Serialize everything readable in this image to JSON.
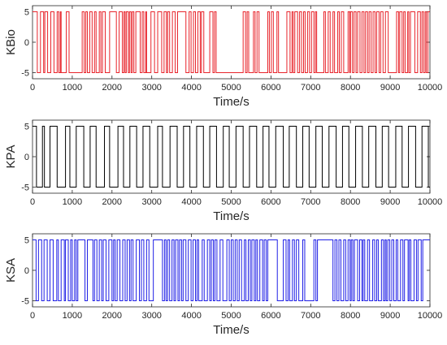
{
  "chart_data": [
    {
      "type": "line",
      "ylabel": "KBio",
      "xlabel": "Time/s",
      "color": "#e8242b",
      "xlim": [
        0,
        10000
      ],
      "ylim": [
        -6,
        6
      ],
      "xticks": [
        0,
        1000,
        2000,
        3000,
        4000,
        5000,
        6000,
        7000,
        8000,
        9000,
        10000
      ],
      "yticks": [
        -5,
        0,
        5
      ],
      "series": [
        {
          "values_levels": [
            -5,
            5
          ],
          "transitions": [
            0,
            120,
            200,
            280,
            310,
            380,
            460,
            540,
            620,
            660,
            700,
            720,
            850,
            920,
            1250,
            1300,
            1340,
            1380,
            1440,
            1500,
            1560,
            1600,
            1680,
            1720,
            1760,
            1830,
            1940,
            2110,
            2180,
            2260,
            2300,
            2330,
            2360,
            2410,
            2440,
            2480,
            2510,
            2550,
            2600,
            2710,
            2760,
            2800,
            2850,
            2870,
            2980,
            3070,
            3150,
            3250,
            3310,
            3370,
            3400,
            3450,
            3520,
            3590,
            3650,
            3860,
            3940,
            3990,
            4050,
            4100,
            4160,
            4220,
            4250,
            4310,
            4460,
            4540,
            4580,
            4620,
            5300,
            5360,
            5400,
            5440,
            5560,
            5600,
            5650,
            5700,
            5920,
            5960,
            6010,
            6060,
            6150,
            6190,
            6400,
            6480,
            6530,
            6560,
            6600,
            6670,
            6720,
            6770,
            6820,
            6860,
            6920,
            6970,
            7020,
            7080,
            7120,
            7150,
            7330,
            7370,
            7440,
            7490,
            7560,
            7600,
            7680,
            7720,
            7770,
            7830,
            7940,
            7980,
            8000,
            8050,
            8090,
            8140,
            8180,
            8240,
            8290,
            8340,
            8380,
            8430,
            8470,
            8520,
            8570,
            8620,
            8660,
            8720,
            8760,
            8820,
            8880,
            8950,
            9160,
            9210,
            9240,
            9300,
            9340,
            9380,
            9440,
            9470,
            9510,
            9620,
            9690,
            9760,
            9800,
            9840,
            9880,
            9910,
            9950
          ],
          "start_level": 5
        }
      ]
    },
    {
      "type": "line",
      "ylabel": "KPA",
      "xlabel": "Time/s",
      "color": "#000000",
      "xlim": [
        0,
        10000
      ],
      "ylim": [
        -6,
        6
      ],
      "xticks": [
        0,
        1000,
        2000,
        3000,
        4000,
        5000,
        6000,
        7000,
        8000,
        9000,
        10000
      ],
      "yticks": [
        -5,
        0,
        5
      ],
      "series": [
        {
          "values_levels": [
            -5,
            5
          ],
          "transitions": [
            0,
            100,
            250,
            300,
            440,
            620,
            830,
            940,
            1100,
            1290,
            1450,
            1600,
            1810,
            1940,
            2150,
            2290,
            2450,
            2620,
            2780,
            2950,
            3150,
            3270,
            3460,
            3640,
            3800,
            3960,
            4130,
            4300,
            4460,
            4630,
            4800,
            4950,
            5120,
            5300,
            5460,
            5640,
            5800,
            5950,
            6120,
            6310,
            6460,
            6640,
            6800,
            6960,
            7130,
            7290,
            7460,
            7640,
            7800,
            7960,
            8130,
            8300,
            8460,
            8640,
            8800,
            8960,
            9140,
            9300,
            9460,
            9640,
            9800,
            9960
          ],
          "start_level": 5
        }
      ]
    },
    {
      "type": "line",
      "ylabel": "KSA",
      "xlabel": "Time/s",
      "color": "#1f1fe6",
      "xlim": [
        0,
        10000
      ],
      "ylim": [
        -6,
        6
      ],
      "xticks": [
        0,
        1000,
        2000,
        3000,
        4000,
        5000,
        6000,
        7000,
        8000,
        9000,
        10000
      ],
      "yticks": [
        -5,
        0,
        5
      ],
      "series": [
        {
          "values_levels": [
            -5,
            5
          ],
          "transitions": [
            0,
            90,
            150,
            230,
            290,
            370,
            440,
            520,
            610,
            650,
            720,
            800,
            830,
            900,
            960,
            1000,
            1060,
            1100,
            1140,
            1320,
            1380,
            1520,
            1560,
            1620,
            1680,
            1740,
            1780,
            1850,
            1920,
            2000,
            2040,
            2080,
            2130,
            2200,
            2270,
            2330,
            2380,
            2440,
            2480,
            2530,
            2610,
            2690,
            2740,
            2800,
            2870,
            2930,
            3040,
            3270,
            3320,
            3360,
            3400,
            3450,
            3510,
            3560,
            3600,
            3660,
            3700,
            3750,
            3790,
            3860,
            3920,
            3990,
            4040,
            4100,
            4140,
            4180,
            4270,
            4320,
            4400,
            4460,
            4500,
            4550,
            4590,
            4640,
            4720,
            4790,
            4890,
            4950,
            5000,
            5050,
            5100,
            5150,
            5200,
            5260,
            5330,
            5370,
            5430,
            5480,
            5520,
            5580,
            5620,
            5660,
            5720,
            5790,
            5830,
            5880,
            5920,
            6160,
            6310,
            6380,
            6430,
            6470,
            6540,
            6590,
            6640,
            6700,
            6800,
            6850,
            7080,
            7130,
            7170,
            7560,
            7610,
            7660,
            7710,
            7760,
            7830,
            7880,
            7940,
            7990,
            8020,
            8060,
            8100,
            8180,
            8230,
            8290,
            8320,
            8360,
            8430,
            8480,
            8560,
            8610,
            8660,
            8700,
            8780,
            8830,
            8870,
            8900,
            8940,
            8990,
            9040,
            9090,
            9150,
            9190,
            9260,
            9320,
            9360,
            9450,
            9480,
            9520,
            9600,
            9660,
            9700,
            9780,
            9820
          ],
          "start_level": 5
        }
      ]
    }
  ]
}
